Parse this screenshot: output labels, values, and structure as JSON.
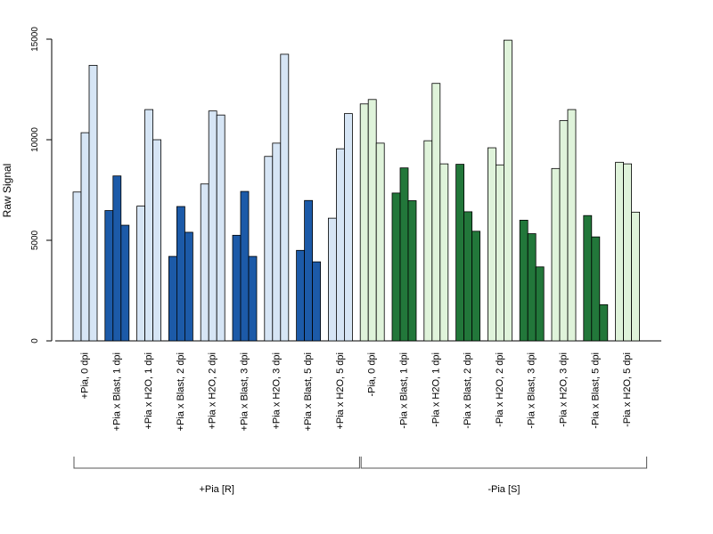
{
  "chart_data": {
    "type": "bar",
    "ylabel": "Raw Signal",
    "ylim": [
      0,
      15000
    ],
    "yticks": [
      0,
      5000,
      10000,
      15000
    ],
    "grid": false,
    "categories": [
      "+Pia, 0 dpi",
      "+Pia x Blast, 1 dpi",
      "+Pia x H2O, 1 dpi",
      "+Pia x Blast, 2 dpi",
      "+Pia x H2O, 2 dpi",
      "+Pia x Blast, 3 dpi",
      "+Pia x H2O, 3 dpi",
      "+Pia x Blast, 5 dpi",
      "+Pia x H2O, 5 dpi",
      "-Pia, 0 dpi",
      "-Pia x Blast, 1 dpi",
      "-Pia x H2O, 1 dpi",
      "-Pia x Blast, 2 dpi",
      "-Pia x H2O, 2 dpi",
      "-Pia x Blast, 3 dpi",
      "-Pia x H2O, 3 dpi",
      "-Pia x Blast, 5 dpi",
      "-Pia x H2O, 5 dpi"
    ],
    "replicates": [
      [
        7400,
        10350,
        13700
      ],
      [
        6480,
        8200,
        5750
      ],
      [
        6700,
        11500,
        10000
      ],
      [
        4200,
        6680,
        5400
      ],
      [
        7800,
        11430,
        11230
      ],
      [
        5250,
        7430,
        4200
      ],
      [
        9170,
        9830,
        14250
      ],
      [
        4500,
        6980,
        3930
      ],
      [
        6100,
        9550,
        11300
      ],
      [
        11780,
        12000,
        9830
      ],
      [
        7350,
        8600,
        6970
      ],
      [
        9950,
        12800,
        8800
      ],
      [
        8780,
        6420,
        5450
      ],
      [
        9600,
        8750,
        14950
      ],
      [
        6000,
        5330,
        3680
      ],
      [
        8570,
        10950,
        11500
      ],
      [
        6230,
        5170,
        1800
      ],
      [
        8880,
        8800,
        6400
      ]
    ],
    "colors": {
      "plus_light": "#d6e5f5",
      "plus_dark": "#1c5aa8",
      "minus_light": "#dff3da",
      "minus_dark": "#22773a",
      "axis": "#000000",
      "bracket": "#555555"
    },
    "groups": [
      {
        "label": "+Pia [R]"
      },
      {
        "label": "-Pia [S]"
      }
    ]
  }
}
